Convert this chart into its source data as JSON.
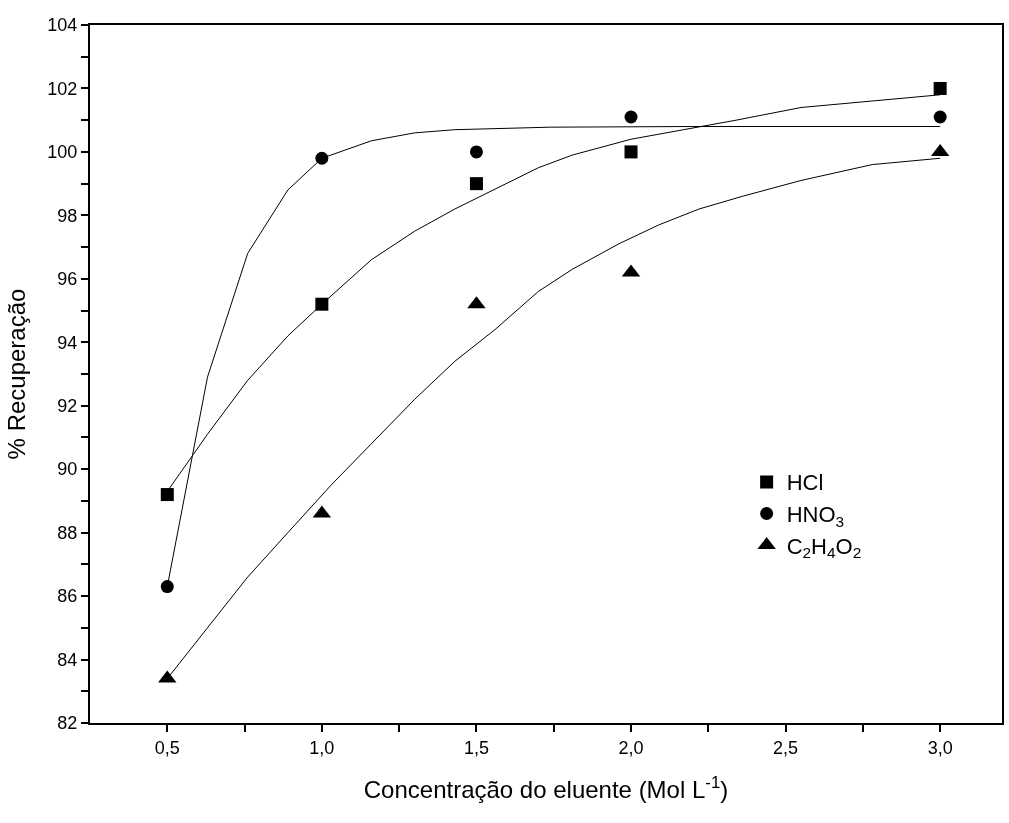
{
  "chart_data": {
    "type": "scatter",
    "xlabel": "Concentração do eluente (Mol L$^{-1}$)",
    "ylabel": "% Recuperação",
    "xlim": [
      0.25,
      3.2
    ],
    "xticks": [
      {
        "value": 0.5,
        "label": "0,5"
      },
      {
        "value": 0.75,
        "label": null
      },
      {
        "value": 1.0,
        "label": "1,0"
      },
      {
        "value": 1.25,
        "label": null
      },
      {
        "value": 1.5,
        "label": "1,5"
      },
      {
        "value": 1.75,
        "label": null
      },
      {
        "value": 2.0,
        "label": "2,0"
      },
      {
        "value": 2.25,
        "label": null
      },
      {
        "value": 2.5,
        "label": "2,5"
      },
      {
        "value": 2.75,
        "label": null
      },
      {
        "value": 3.0,
        "label": "3,0"
      }
    ],
    "ylim": [
      82,
      104
    ],
    "yticks": [
      82,
      {
        "value": 83,
        "label": null
      },
      84,
      {
        "value": 85,
        "label": null
      },
      86,
      {
        "value": 87,
        "label": null
      },
      88,
      {
        "value": 89,
        "label": null
      },
      90,
      {
        "value": 91,
        "label": null
      },
      92,
      {
        "value": 93,
        "label": null
      },
      94,
      {
        "value": 95,
        "label": null
      },
      96,
      {
        "value": 97,
        "label": null
      },
      98,
      {
        "value": 99,
        "label": null
      },
      100,
      {
        "value": 101,
        "label": null
      },
      102,
      {
        "value": 103,
        "label": null
      },
      104
    ],
    "legend": "bottom right",
    "series": [
      {
        "name": "HCl",
        "marker": "square",
        "color": "#000000",
        "x": [
          0.5,
          1.0,
          1.5,
          2.0,
          3.0
        ],
        "values": [
          89.2,
          95.2,
          99.0,
          100.0,
          102.0
        ]
      },
      {
        "name": "HNO$_{3}$",
        "marker": "circle",
        "color": "#000000",
        "x": [
          0.5,
          1.0,
          1.5,
          2.0,
          3.0
        ],
        "values": [
          86.3,
          99.8,
          100.0,
          101.1,
          101.1
        ]
      },
      {
        "name": "C$_{2}$H$_{4}$O$_{2}$",
        "marker": "triangle",
        "color": "#000000",
        "x": [
          0.5,
          1.0,
          1.5,
          2.0,
          3.0
        ],
        "values": [
          83.4,
          88.6,
          95.2,
          96.2,
          100.0
        ]
      },
      {
        "type": "line",
        "marker": "none",
        "line_style": "solid",
        "color": "#000000",
        "x": [
          0.5,
          0.63,
          0.76,
          0.89,
          1.0,
          1.16,
          1.3,
          1.43,
          1.74,
          2.2,
          3.0
        ],
        "values": [
          86.3,
          92.9,
          96.8,
          98.8,
          99.8,
          100.35,
          100.6,
          100.7,
          100.78,
          100.8,
          100.8
        ]
      },
      {
        "type": "line",
        "marker": "none",
        "line_style": "solid",
        "color": "#000000",
        "x": [
          0.5,
          0.63,
          0.76,
          0.89,
          1.0,
          1.16,
          1.3,
          1.43,
          1.7,
          1.81,
          2.0,
          2.17,
          2.34,
          2.55,
          3.0
        ],
        "values": [
          89.3,
          91.1,
          92.8,
          94.2,
          95.2,
          96.6,
          97.5,
          98.2,
          99.5,
          99.9,
          100.4,
          100.7,
          101.0,
          101.4,
          101.8
        ]
      },
      {
        "type": "line",
        "marker": "none",
        "line_style": "solid",
        "color": "#000000",
        "x": [
          0.5,
          0.76,
          0.89,
          1.03,
          1.16,
          1.3,
          1.43,
          1.56,
          1.7,
          1.81,
          1.96,
          2.09,
          2.22,
          2.36,
          2.55,
          2.78,
          3.0
        ],
        "values": [
          83.4,
          86.6,
          88.0,
          89.5,
          90.8,
          92.2,
          93.4,
          94.4,
          95.6,
          96.3,
          97.1,
          97.7,
          98.2,
          98.6,
          99.1,
          99.6,
          99.8
        ]
      }
    ]
  }
}
